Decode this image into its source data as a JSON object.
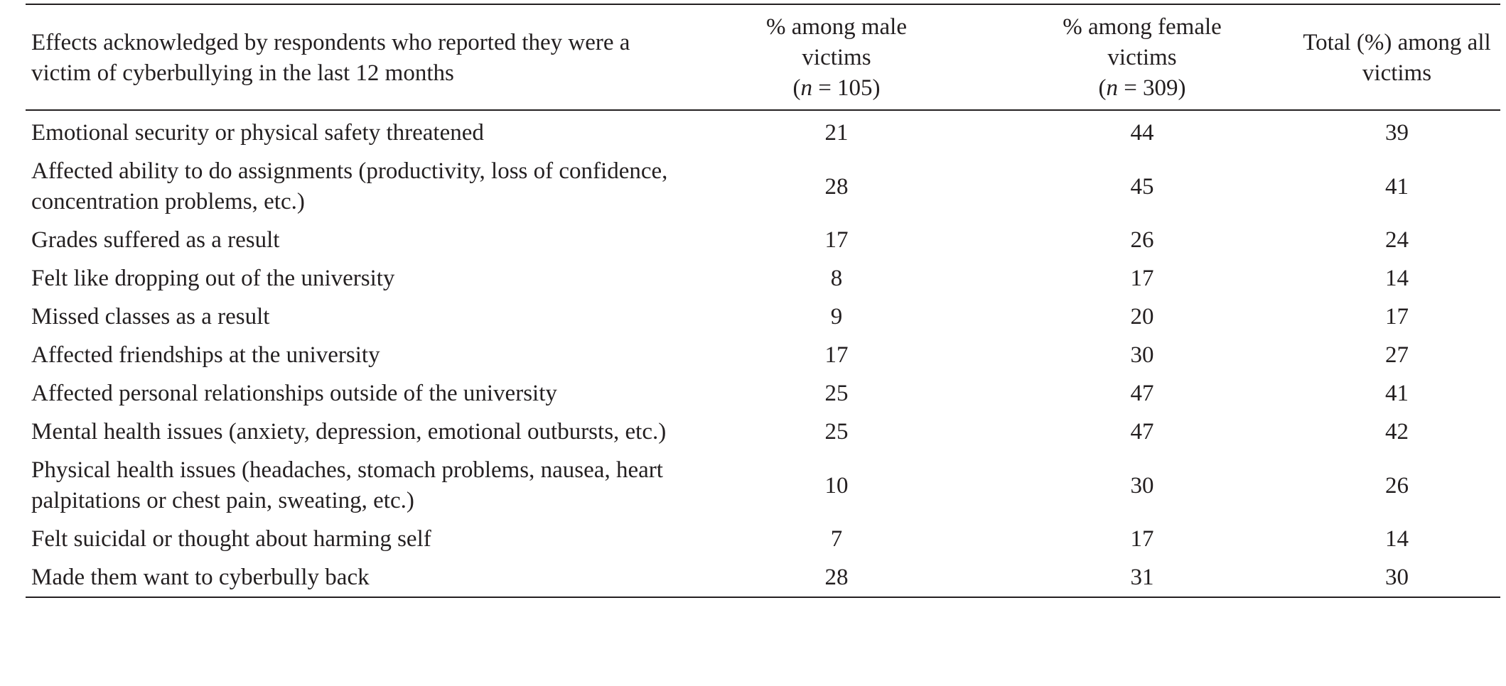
{
  "table": {
    "headers": {
      "effect": "Effects acknowledged by respondents who reported they were a victim of cyberbullying in the last 12 months",
      "male_line1": "% among male",
      "male_line2": "victims",
      "male_n_var": "n",
      "male_n_rest": " = 105)",
      "female_line1": "% among female",
      "female_line2": "victims",
      "female_n_var": "n",
      "female_n_rest": " = 309)",
      "total": "Total (%) among all victims"
    },
    "rows": [
      {
        "effect": "Emotional security or physical safety threatened",
        "male": "21",
        "female": "44",
        "total": "39"
      },
      {
        "effect": "Affected ability to do assignments (productivity, loss of confidence, concentration problems, etc.)",
        "male": "28",
        "female": "45",
        "total": "41"
      },
      {
        "effect": "Grades suffered as a result",
        "male": "17",
        "female": "26",
        "total": "24"
      },
      {
        "effect": "Felt like dropping out of the university",
        "male": "8",
        "female": "17",
        "total": "14"
      },
      {
        "effect": "Missed classes as a result",
        "male": "9",
        "female": "20",
        "total": "17"
      },
      {
        "effect": "Affected friendships at the university",
        "male": "17",
        "female": "30",
        "total": "27"
      },
      {
        "effect": "Affected personal relationships outside of the university",
        "male": "25",
        "female": "47",
        "total": "41"
      },
      {
        "effect": "Mental health issues (anxiety, depression, emotional outbursts, etc.)",
        "male": "25",
        "female": "47",
        "total": "42"
      },
      {
        "effect": "Physical health issues (headaches, stomach problems, nausea, heart palpitations or chest pain, sweating, etc.)",
        "male": "10",
        "female": "30",
        "total": "26"
      },
      {
        "effect": "Felt suicidal or thought about harming self",
        "male": "7",
        "female": "17",
        "total": "14"
      },
      {
        "effect": "Made them want to cyberbully back",
        "male": "28",
        "female": "31",
        "total": "30"
      }
    ]
  }
}
